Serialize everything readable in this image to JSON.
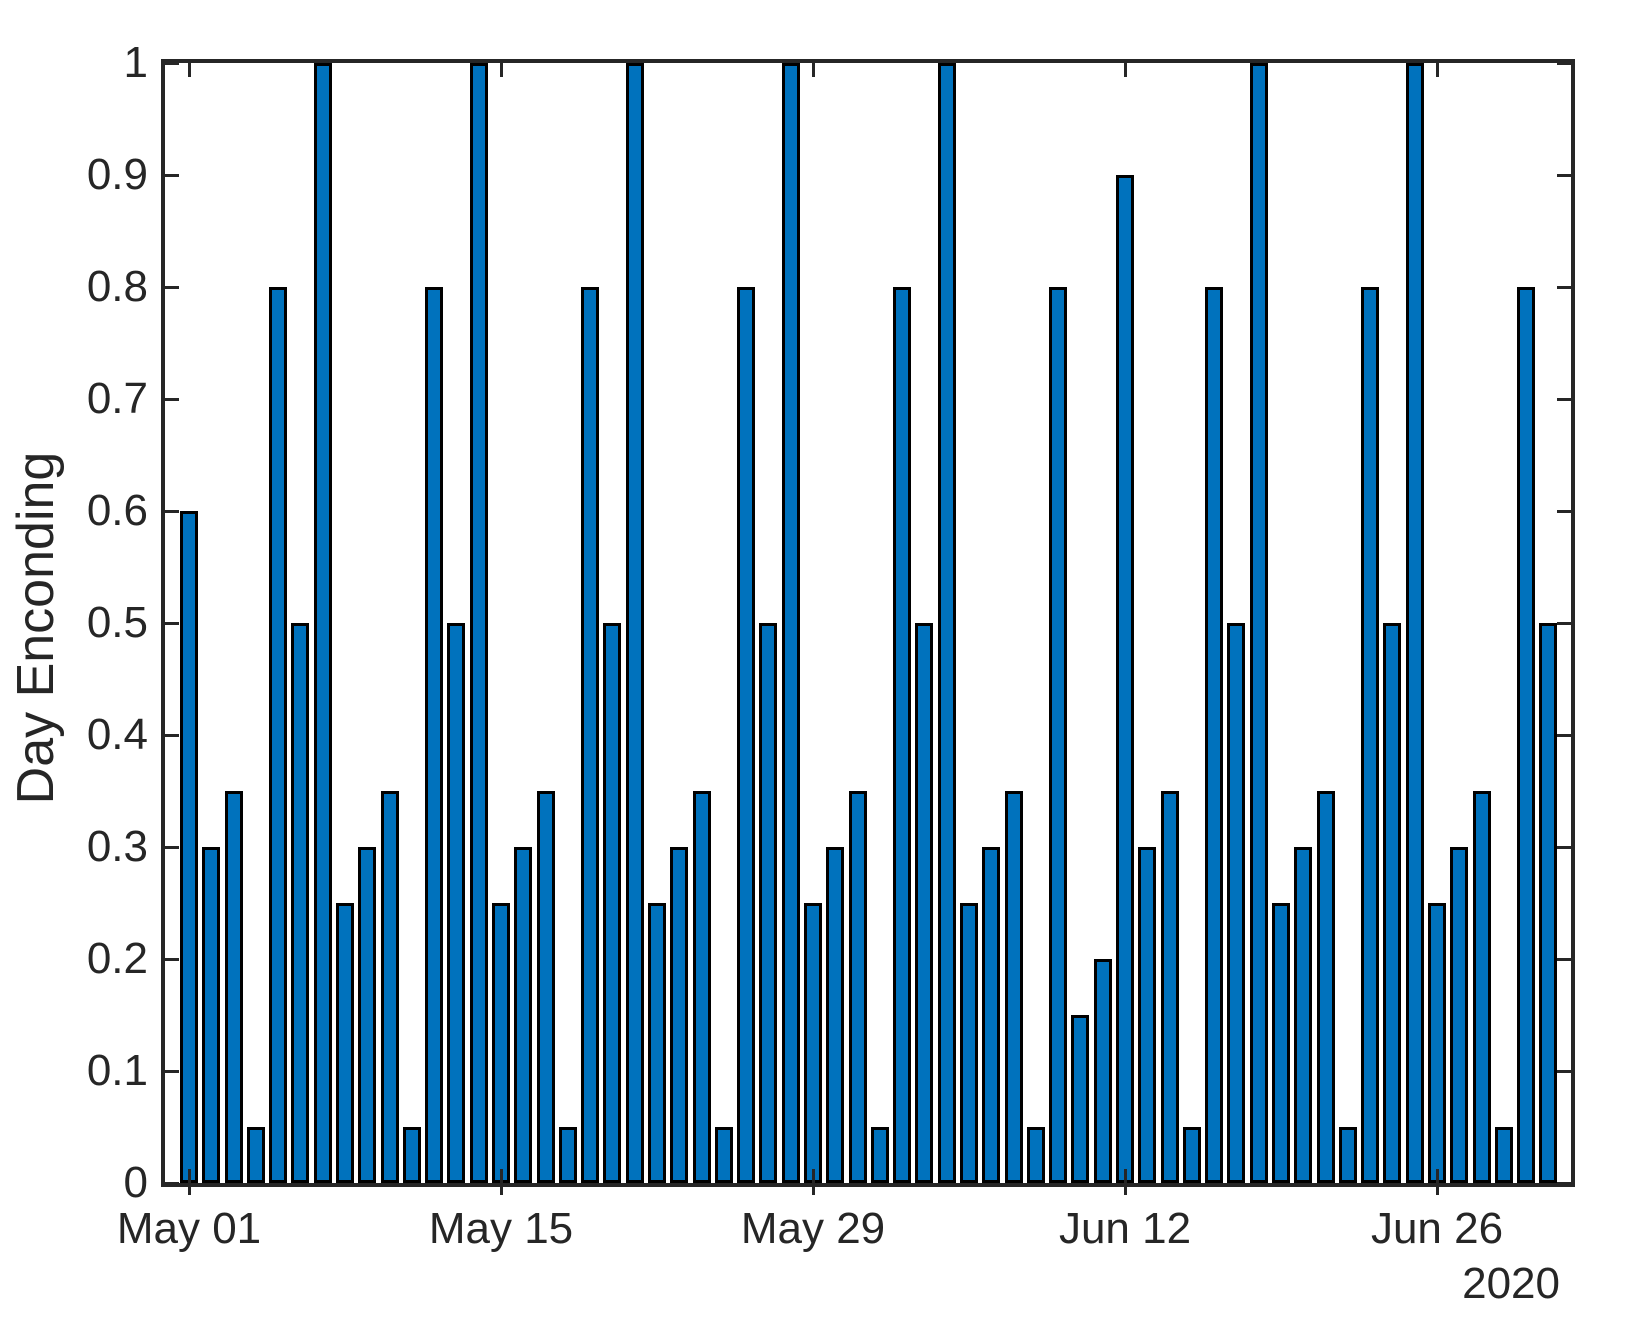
{
  "figure": {
    "background": "#ffffff",
    "text_color": "#262626"
  },
  "chart_data": {
    "type": "bar",
    "title": "",
    "xlabel": "",
    "ylabel": "Day Enconding",
    "secondary_xlabel": "2020",
    "ylim": [
      0,
      1
    ],
    "grid": false,
    "legend": null,
    "bar_face_color": "#0072BD",
    "bar_edge_color": "#000000",
    "axis_color": "#262626",
    "yticks": [
      {
        "value": 0,
        "label": "0"
      },
      {
        "value": 0.1,
        "label": "0.1"
      },
      {
        "value": 0.2,
        "label": "0.2"
      },
      {
        "value": 0.3,
        "label": "0.3"
      },
      {
        "value": 0.4,
        "label": "0.4"
      },
      {
        "value": 0.5,
        "label": "0.5"
      },
      {
        "value": 0.6,
        "label": "0.6"
      },
      {
        "value": 0.7,
        "label": "0.7"
      },
      {
        "value": 0.8,
        "label": "0.8"
      },
      {
        "value": 0.9,
        "label": "0.9"
      },
      {
        "value": 1,
        "label": "1"
      }
    ],
    "xticks": [
      {
        "index": 0,
        "label": "May 01"
      },
      {
        "index": 14,
        "label": "May 15"
      },
      {
        "index": 28,
        "label": "May 29"
      },
      {
        "index": 42,
        "label": "Jun 12"
      },
      {
        "index": 56,
        "label": "Jun 26"
      }
    ],
    "dates": [
      "2020-05-01",
      "2020-05-02",
      "2020-05-03",
      "2020-05-04",
      "2020-05-05",
      "2020-05-06",
      "2020-05-07",
      "2020-05-08",
      "2020-05-09",
      "2020-05-10",
      "2020-05-11",
      "2020-05-12",
      "2020-05-13",
      "2020-05-14",
      "2020-05-15",
      "2020-05-16",
      "2020-05-17",
      "2020-05-18",
      "2020-05-19",
      "2020-05-20",
      "2020-05-21",
      "2020-05-22",
      "2020-05-23",
      "2020-05-24",
      "2020-05-25",
      "2020-05-26",
      "2020-05-27",
      "2020-05-28",
      "2020-05-29",
      "2020-05-30",
      "2020-05-31",
      "2020-06-01",
      "2020-06-02",
      "2020-06-03",
      "2020-06-04",
      "2020-06-05",
      "2020-06-06",
      "2020-06-07",
      "2020-06-08",
      "2020-06-09",
      "2020-06-10",
      "2020-06-11",
      "2020-06-12",
      "2020-06-13",
      "2020-06-14",
      "2020-06-15",
      "2020-06-16",
      "2020-06-17",
      "2020-06-18",
      "2020-06-19",
      "2020-06-20",
      "2020-06-21",
      "2020-06-22",
      "2020-06-23",
      "2020-06-24",
      "2020-06-25",
      "2020-06-26",
      "2020-06-27",
      "2020-06-28",
      "2020-06-29",
      "2020-06-30",
      "2020-07-01"
    ],
    "values": [
      0.6,
      0.3,
      0.35,
      0.05,
      0.8,
      0.5,
      1,
      0.25,
      0.3,
      0.35,
      0.05,
      0.8,
      0.5,
      1,
      0.25,
      0.3,
      0.35,
      0.05,
      0.8,
      0.5,
      1,
      0.25,
      0.3,
      0.35,
      0.05,
      0.8,
      0.5,
      1,
      0.25,
      0.3,
      0.35,
      0.05,
      0.8,
      0.5,
      1,
      0.25,
      0.3,
      0.35,
      0.05,
      0.8,
      0.15,
      0.2,
      0.9,
      0.3,
      0.35,
      0.05,
      0.8,
      0.5,
      1,
      0.25,
      0.3,
      0.35,
      0.05,
      0.8,
      0.5,
      1,
      0.25,
      0.3,
      0.35,
      0.05,
      0.8,
      0.5
    ]
  }
}
